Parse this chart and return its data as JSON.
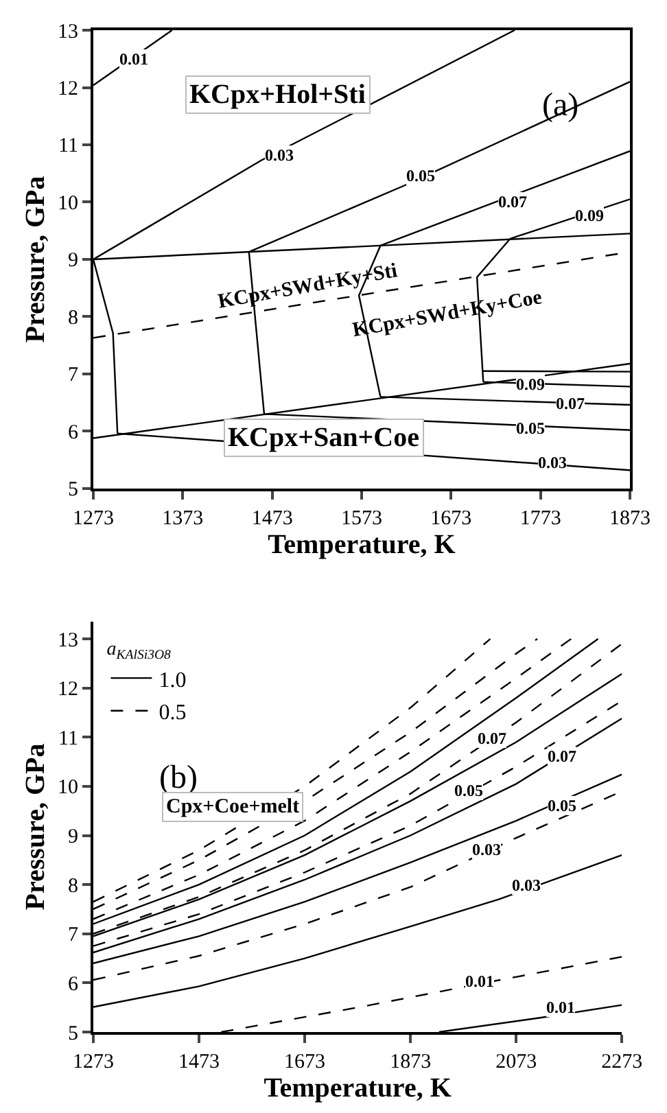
{
  "chart_data": [
    {
      "type": "line",
      "title": "(a)",
      "xlabel": "Temperature, K",
      "ylabel": "Pressure, GPa",
      "xlim": [
        1273,
        1873
      ],
      "xticks": [
        1273,
        1373,
        1473,
        1573,
        1673,
        1773,
        1873
      ],
      "ylim": [
        5,
        13
      ],
      "yticks": [
        5,
        6,
        7,
        8,
        9,
        10,
        11,
        12,
        13
      ],
      "legend": false,
      "marker": "none",
      "series": [
        {
          "color": "#000000",
          "line_style": "solid",
          "x": [
            1273,
            1873
          ],
          "values": [
            9.0,
            9.45
          ]
        },
        {
          "color": "#000000",
          "line_style": "dashed",
          "x": [
            1273,
            1873
          ],
          "values": [
            7.63,
            9.13
          ]
        },
        {
          "color": "#000000",
          "line_style": "solid",
          "x": [
            1273,
            1873
          ],
          "values": [
            5.88,
            7.18
          ]
        },
        {
          "color": "#000000",
          "line_style": "solid",
          "x": [
            1273,
            1361
          ],
          "values": [
            12.04,
            13.0
          ]
        },
        {
          "color": "#000000",
          "line_style": "solid",
          "x": [
            1273,
            1461,
            1744
          ],
          "values": [
            9.0,
            10.73,
            13.0
          ]
        },
        {
          "color": "#000000",
          "line_style": "solid",
          "x": [
            1447,
            1621,
            1873
          ],
          "values": [
            9.13,
            10.29,
            12.1
          ]
        },
        {
          "color": "#000000",
          "line_style": "solid",
          "x": [
            1594,
            1873
          ],
          "values": [
            9.24,
            10.89
          ]
        },
        {
          "color": "#000000",
          "line_style": "solid",
          "x": [
            1739,
            1873
          ],
          "values": [
            9.36,
            10.05
          ]
        },
        {
          "color": "#000000",
          "line_style": "solid",
          "x": [
            1273,
            1295,
            1300
          ],
          "values": [
            9.0,
            7.71,
            5.96
          ]
        },
        {
          "color": "#000000",
          "line_style": "solid",
          "x": [
            1447,
            1464
          ],
          "values": [
            9.13,
            6.3
          ]
        },
        {
          "color": "#000000",
          "line_style": "solid",
          "x": [
            1594,
            1570,
            1594
          ],
          "values": [
            9.24,
            8.37,
            6.6
          ]
        },
        {
          "color": "#000000",
          "line_style": "solid",
          "x": [
            1739,
            1702,
            1709
          ],
          "values": [
            9.36,
            8.69,
            6.86
          ]
        },
        {
          "color": "#000000",
          "line_style": "solid",
          "x": [
            1300,
            1873
          ],
          "values": [
            5.96,
            5.32
          ]
        },
        {
          "color": "#000000",
          "line_style": "solid",
          "x": [
            1464,
            1873
          ],
          "values": [
            6.3,
            6.02
          ]
        },
        {
          "color": "#000000",
          "line_style": "solid",
          "x": [
            1594,
            1873
          ],
          "values": [
            6.6,
            6.46
          ]
        },
        {
          "color": "#000000",
          "line_style": "solid",
          "x": [
            1709,
            1873
          ],
          "values": [
            6.86,
            6.78
          ]
        },
        {
          "color": "#000000",
          "line_style": "solid",
          "x": [
            1708,
            1873
          ],
          "values": [
            7.05,
            7.04
          ]
        }
      ],
      "annotations": [
        {
          "text": "0.01",
          "x": 1318,
          "y": 12.5
        },
        {
          "text": "0.03",
          "x": 1481,
          "y": 10.81
        },
        {
          "text": "0.05",
          "x": 1639,
          "y": 10.45
        },
        {
          "text": "0.07",
          "x": 1742,
          "y": 10.01
        },
        {
          "text": "0.09",
          "x": 1827,
          "y": 9.77
        },
        {
          "text": "0.09",
          "x": 1762,
          "y": 6.82
        },
        {
          "text": "0.07",
          "x": 1807,
          "y": 6.48
        },
        {
          "text": "0.05",
          "x": 1762,
          "y": 6.06
        },
        {
          "text": "0.03",
          "x": 1787,
          "y": 5.45
        },
        "KCpx+Hol+Sti",
        "KCpx+SWd+Ky+Sti",
        "KCpx+SWd+Ky+Coe",
        "KCpx+San+Coe"
      ]
    },
    {
      "type": "line",
      "title": "(b)",
      "xlabel": "Temperature, K",
      "ylabel": "Pressure, GPa",
      "legend_title": "a$_{KAlSi3O8}$",
      "xlim": [
        1273,
        2273
      ],
      "xticks": [
        1273,
        1473,
        1673,
        1873,
        2073,
        2273
      ],
      "ylim": [
        5,
        13.35
      ],
      "yticks": [
        5,
        6,
        7,
        8,
        9,
        10,
        11,
        12,
        13
      ],
      "legend": "top left",
      "marker": "none",
      "series": [
        {
          "name": "1.0",
          "color": "#000000",
          "line_style": "solid",
          "x": [
            1927,
            2118,
            2273
          ],
          "values": [
            5.0,
            5.29,
            5.55
          ]
        },
        {
          "color": "#000000",
          "line_style": "solid",
          "x": [
            1273,
            1473,
            1673,
            1873,
            2040,
            2273
          ],
          "values": [
            5.51,
            5.93,
            6.5,
            7.15,
            7.7,
            8.6
          ]
        },
        {
          "color": "#000000",
          "line_style": "solid",
          "x": [
            1273,
            1473,
            1673,
            1873,
            2073,
            2273
          ],
          "values": [
            6.4,
            6.95,
            7.65,
            8.45,
            9.3,
            10.24
          ]
        },
        {
          "color": "#000000",
          "line_style": "solid",
          "x": [
            1273,
            1473,
            1673,
            1873,
            2073,
            2273
          ],
          "values": [
            6.62,
            7.3,
            8.1,
            9.0,
            10.05,
            11.38
          ]
        },
        {
          "color": "#000000",
          "line_style": "solid",
          "x": [
            1273,
            1473,
            1673,
            1873,
            2073,
            2273
          ],
          "values": [
            6.95,
            7.7,
            8.6,
            9.7,
            10.9,
            12.29
          ]
        },
        {
          "color": "#000000",
          "line_style": "solid",
          "x": [
            1273,
            1473,
            1673,
            1873,
            2073,
            2228
          ],
          "values": [
            7.2,
            8.0,
            9.0,
            10.3,
            11.8,
            13.0
          ]
        },
        {
          "name": "0.5",
          "color": "#000000",
          "line_style": "dashed",
          "x": [
            1515,
            1778,
            2033,
            2273
          ],
          "values": [
            5.0,
            5.51,
            6.04,
            6.53
          ]
        },
        {
          "color": "#000000",
          "line_style": "dashed",
          "x": [
            1273,
            1473,
            1673,
            1873,
            2073,
            2273
          ],
          "values": [
            6.06,
            6.55,
            7.2,
            7.95,
            8.95,
            9.9
          ]
        },
        {
          "color": "#000000",
          "line_style": "dashed",
          "x": [
            1273,
            1473,
            1673,
            1873,
            2073,
            2273
          ],
          "values": [
            6.75,
            7.4,
            8.25,
            9.2,
            10.4,
            11.74
          ]
        },
        {
          "color": "#000000",
          "line_style": "dashed",
          "x": [
            1273,
            1473,
            1673,
            1873,
            2073,
            2273
          ],
          "values": [
            7.0,
            7.75,
            8.7,
            9.85,
            11.3,
            12.9
          ]
        },
        {
          "color": "#000000",
          "line_style": "dashed",
          "x": [
            1273,
            1473,
            1673,
            1873,
            2073,
            2177
          ],
          "values": [
            7.3,
            8.2,
            9.3,
            10.7,
            12.2,
            13.0
          ]
        },
        {
          "color": "#000000",
          "line_style": "dashed",
          "x": [
            1273,
            1473,
            1673,
            1873,
            2073,
            2113
          ],
          "values": [
            7.5,
            8.5,
            9.7,
            11.1,
            12.7,
            13.0
          ]
        },
        {
          "color": "#000000",
          "line_style": "dashed",
          "x": [
            1273,
            1473,
            1673,
            1873,
            2024
          ],
          "values": [
            7.65,
            8.7,
            10.0,
            11.6,
            13.0
          ]
        }
      ],
      "annotations": [
        {
          "text": "0.01",
          "x": 2156,
          "y": 5.49
        },
        {
          "text": "0.01",
          "x": 2003,
          "y": 6.04
        },
        {
          "text": "0.03",
          "x": 2092,
          "y": 8.0
        },
        {
          "text": "0.03",
          "x": 2016,
          "y": 8.71
        },
        {
          "text": "0.05",
          "x": 2160,
          "y": 9.6
        },
        {
          "text": "0.05",
          "x": 1982,
          "y": 9.91
        },
        {
          "text": "0.07",
          "x": 2160,
          "y": 10.62
        },
        {
          "text": "0.07",
          "x": 2028,
          "y": 10.98
        },
        "Cpx+Coe+melt"
      ]
    }
  ]
}
